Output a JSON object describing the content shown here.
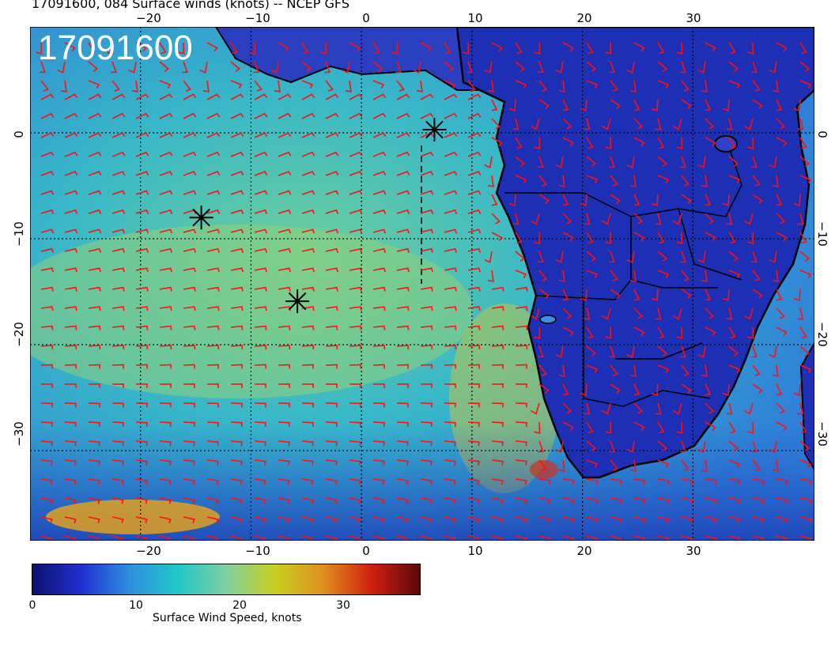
{
  "title": "17091600, 084 Surface winds (knots) -- NCEP GFS",
  "overlay_label": "17091600",
  "x_tick_labels": [
    "−20",
    "−10",
    "0",
    "10",
    "20",
    "30"
  ],
  "y_tick_labels": [
    "0",
    "−10",
    "−20",
    "−30"
  ],
  "colorbar": {
    "tick_labels": [
      "0",
      "10",
      "20",
      "30"
    ],
    "label": "Surface Wind Speed, knots",
    "stops": [
      "#10106e",
      "#1f2fd0",
      "#2f8fe0",
      "#20c8c8",
      "#7fd0a0",
      "#c8d020",
      "#e09020",
      "#d02010",
      "#5a0808"
    ]
  },
  "map": {
    "lon_range": [
      -30,
      41
    ],
    "lat_range": [
      -38.5,
      10
    ],
    "ocean_color": "#3aa5d8",
    "land_color": "#1a2fb8",
    "barb_color": "#ff1010",
    "markers": [
      {
        "name": "star-marker-1",
        "lon": -14.5,
        "lat": -8.0
      },
      {
        "name": "star-marker-2",
        "lon": -5.8,
        "lat": -15.9
      },
      {
        "name": "star-marker-3",
        "lon": 6.6,
        "lat": 0.3
      }
    ]
  }
}
